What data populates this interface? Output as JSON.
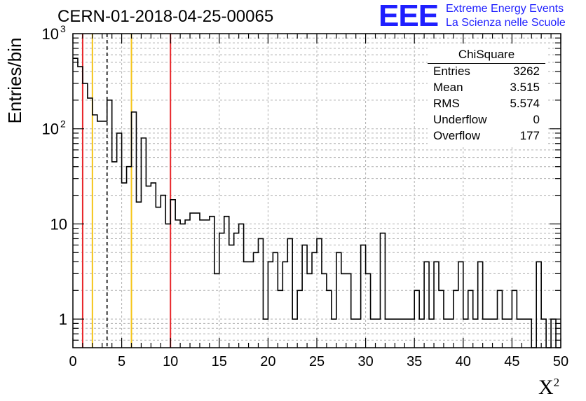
{
  "header": {
    "title": "CERN-01-2018-04-25-00065",
    "logo_text": "EEE",
    "logo_line1": "Extreme Energy Events",
    "logo_line2": "La Scienza nelle Scuole"
  },
  "stats": {
    "title": "ChiSquare",
    "rows": [
      {
        "name": "Entries",
        "value": "3262"
      },
      {
        "name": "Mean",
        "value": "3.515"
      },
      {
        "name": "RMS",
        "value": "5.574"
      },
      {
        "name": "Underflow",
        "value": "0"
      },
      {
        "name": "Overflow",
        "value": "177"
      }
    ]
  },
  "colors": {
    "hist": "#000000",
    "red_line": "#e8262a",
    "yellow_line": "#f5c518",
    "dashed_line": "#000000",
    "logo": "#1f1fff"
  },
  "chart_data": {
    "type": "histogram",
    "title": "CERN-01-2018-04-25-00065",
    "xlabel": "X",
    "xlabel_superscript": "2",
    "ylabel": "Entries/bin",
    "xlim": [
      0,
      50
    ],
    "ylim": [
      0.5,
      1000
    ],
    "yscale": "log",
    "grid": true,
    "bin_width": 0.5,
    "x_ticks": [
      "0",
      "5",
      "10",
      "15",
      "20",
      "25",
      "30",
      "35",
      "40",
      "45",
      "50"
    ],
    "y_ticks": [
      {
        "value": 1,
        "label": "1"
      },
      {
        "value": 10,
        "label": "10"
      },
      {
        "value": 100,
        "label": "10",
        "exp": "2"
      },
      {
        "value": 1000,
        "label": "10",
        "exp": "3"
      }
    ],
    "values": [
      550,
      450,
      300,
      210,
      140,
      120,
      120,
      200,
      45,
      90,
      27,
      40,
      150,
      17,
      80,
      25,
      27,
      15,
      20,
      10,
      18,
      11,
      10,
      11,
      13,
      13,
      11,
      11,
      12,
      3,
      8,
      12,
      6,
      8,
      10,
      4,
      4,
      5,
      7,
      1,
      4,
      5,
      2,
      4,
      7,
      1,
      2,
      6,
      3,
      5,
      7,
      3,
      2,
      1,
      5,
      3,
      3,
      1,
      1,
      6,
      3,
      1,
      1,
      8,
      1,
      1,
      1,
      1,
      1,
      1,
      2,
      1,
      4,
      1,
      4,
      2,
      1,
      1,
      2,
      4,
      1,
      2,
      1,
      4,
      1,
      1,
      1,
      2,
      1,
      1,
      2,
      1,
      1,
      1,
      0,
      4,
      1,
      0,
      1,
      0
    ],
    "vertical_lines": [
      {
        "x": 1,
        "color": "red",
        "style": "solid"
      },
      {
        "x": 2,
        "color": "yellow",
        "style": "solid"
      },
      {
        "x": 3.5,
        "color": "black",
        "style": "dashed"
      },
      {
        "x": 6,
        "color": "yellow",
        "style": "solid"
      },
      {
        "x": 10,
        "color": "red",
        "style": "solid"
      }
    ]
  }
}
